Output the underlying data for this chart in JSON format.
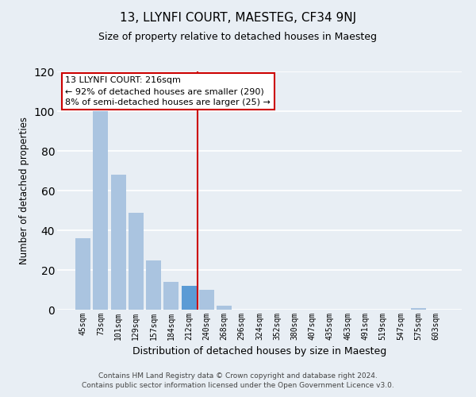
{
  "title": "13, LLYNFI COURT, MAESTEG, CF34 9NJ",
  "subtitle": "Size of property relative to detached houses in Maesteg",
  "xlabel": "Distribution of detached houses by size in Maesteg",
  "ylabel": "Number of detached properties",
  "bar_labels": [
    "45sqm",
    "73sqm",
    "101sqm",
    "129sqm",
    "157sqm",
    "184sqm",
    "212sqm",
    "240sqm",
    "268sqm",
    "296sqm",
    "324sqm",
    "352sqm",
    "380sqm",
    "407sqm",
    "435sqm",
    "463sqm",
    "491sqm",
    "519sqm",
    "547sqm",
    "575sqm",
    "603sqm"
  ],
  "bar_heights": [
    36,
    100,
    68,
    49,
    25,
    14,
    12,
    10,
    2,
    0,
    0,
    0,
    0,
    0,
    0,
    0,
    0,
    0,
    0,
    1,
    0
  ],
  "bar_color": "#aac4e0",
  "highlight_bar_index": 6,
  "highlight_color": "#5b9bd5",
  "vline_bar_index": 6,
  "ylim": [
    0,
    120
  ],
  "yticks": [
    0,
    20,
    40,
    60,
    80,
    100,
    120
  ],
  "annotation_line1": "13 LLYNFI COURT: 216sqm",
  "annotation_line2": "← 92% of detached houses are smaller (290)",
  "annotation_line3": "8% of semi-detached houses are larger (25) →",
  "annotation_box_color": "#ffffff",
  "annotation_border_color": "#cc0000",
  "footer_line1": "Contains HM Land Registry data © Crown copyright and database right 2024.",
  "footer_line2": "Contains public sector information licensed under the Open Government Licence v3.0.",
  "bg_color": "#e8eef4",
  "grid_color": "#ffffff",
  "title_fontsize": 11,
  "subtitle_fontsize": 9,
  "ylabel_fontsize": 8.5,
  "xlabel_fontsize": 9
}
